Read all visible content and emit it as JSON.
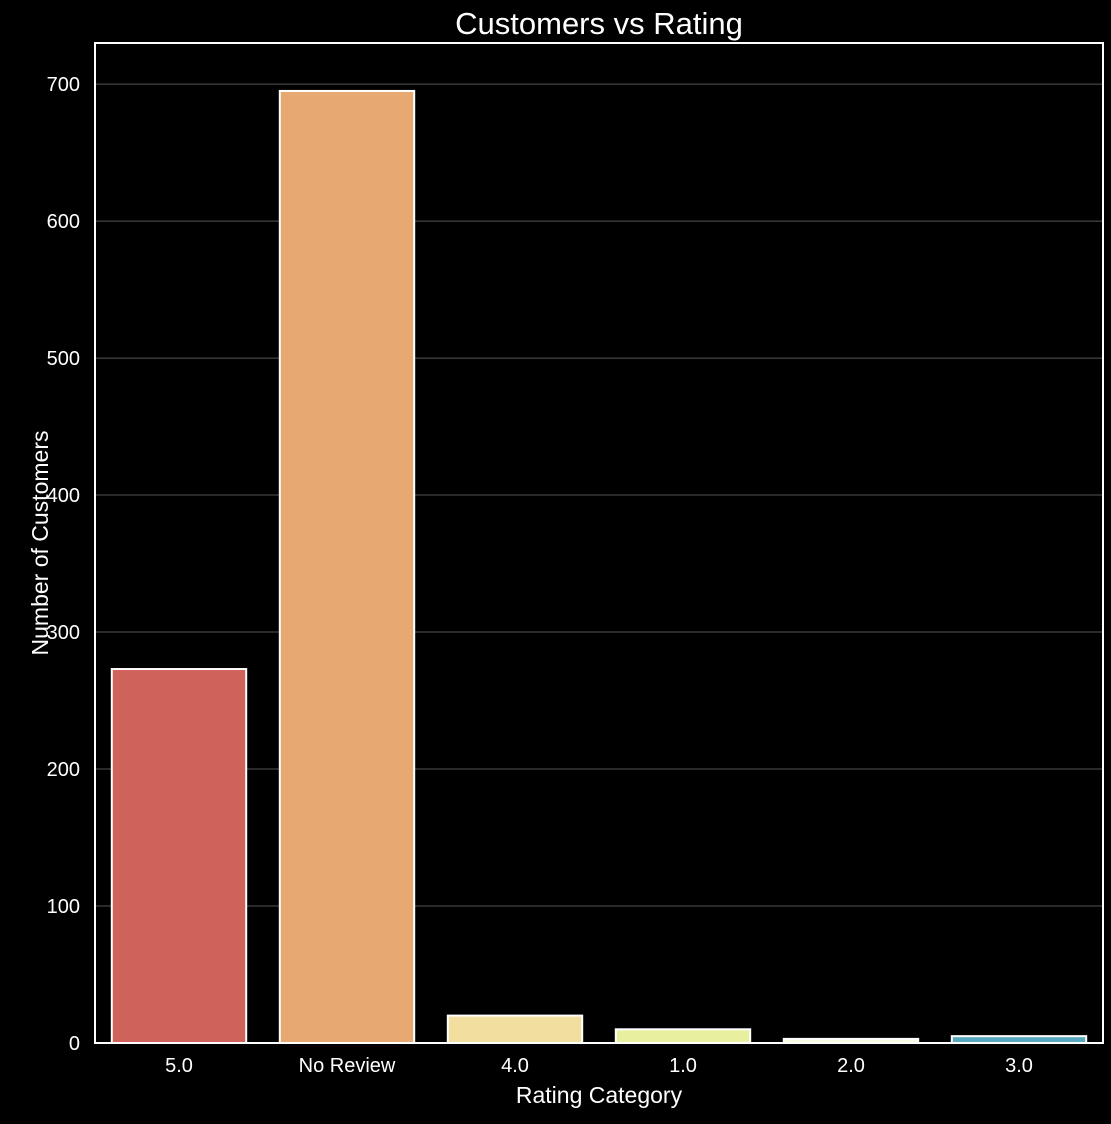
{
  "chart_data": {
    "type": "bar",
    "title": "Customers vs Rating",
    "xlabel": "Rating Category",
    "ylabel": "Number of Customers",
    "categories": [
      "5.0",
      "No Review",
      "4.0",
      "1.0",
      "2.0",
      "3.0"
    ],
    "values": [
      273,
      695,
      20,
      10,
      3,
      5
    ],
    "colors": [
      "#d0625c",
      "#e8a872",
      "#f2df9f",
      "#e8ef9e",
      "#f7fbe0",
      "#5aa8bd"
    ],
    "ylim": [
      0,
      730
    ],
    "yticks": [
      0,
      100,
      200,
      300,
      400,
      500,
      600,
      700
    ],
    "grid": "horizontal",
    "background": "#000000",
    "text_color": "#ffffff",
    "grid_color": "#555555",
    "bar_edge_color": "#ffffff"
  }
}
